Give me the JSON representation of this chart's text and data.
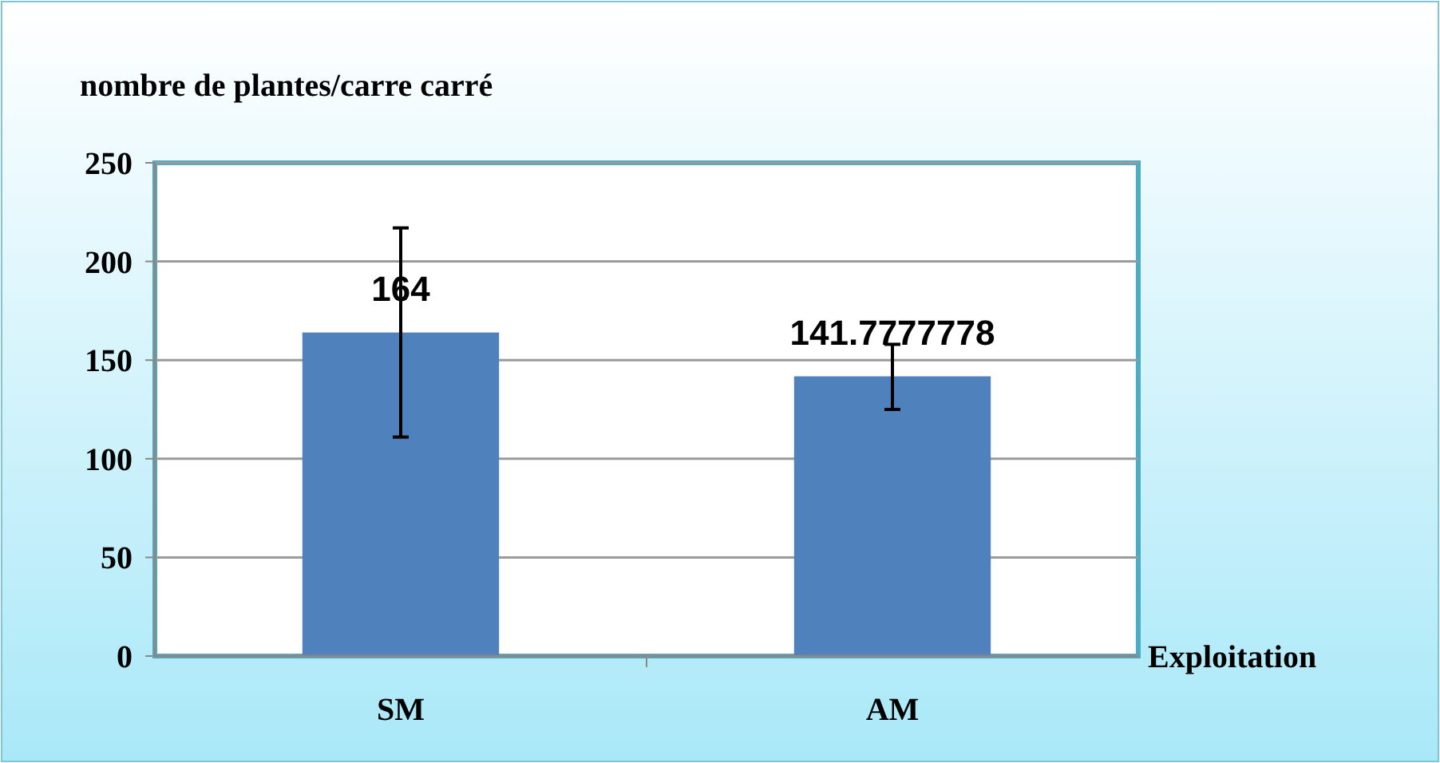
{
  "chart_data": {
    "type": "bar",
    "ylabel": "nombre de plantes/carre carré",
    "xlabel": "Exploitation",
    "categories": [
      "SM",
      "AM"
    ],
    "values": [
      164,
      141.7777778
    ],
    "errors": [
      [
        111,
        217
      ],
      [
        125,
        158
      ]
    ],
    "color": "#4f81bd",
    "ylim": [
      0,
      250
    ],
    "yticks": [
      0,
      50,
      100,
      150,
      200,
      250
    ],
    "grid": "y",
    "data_labels": true
  }
}
